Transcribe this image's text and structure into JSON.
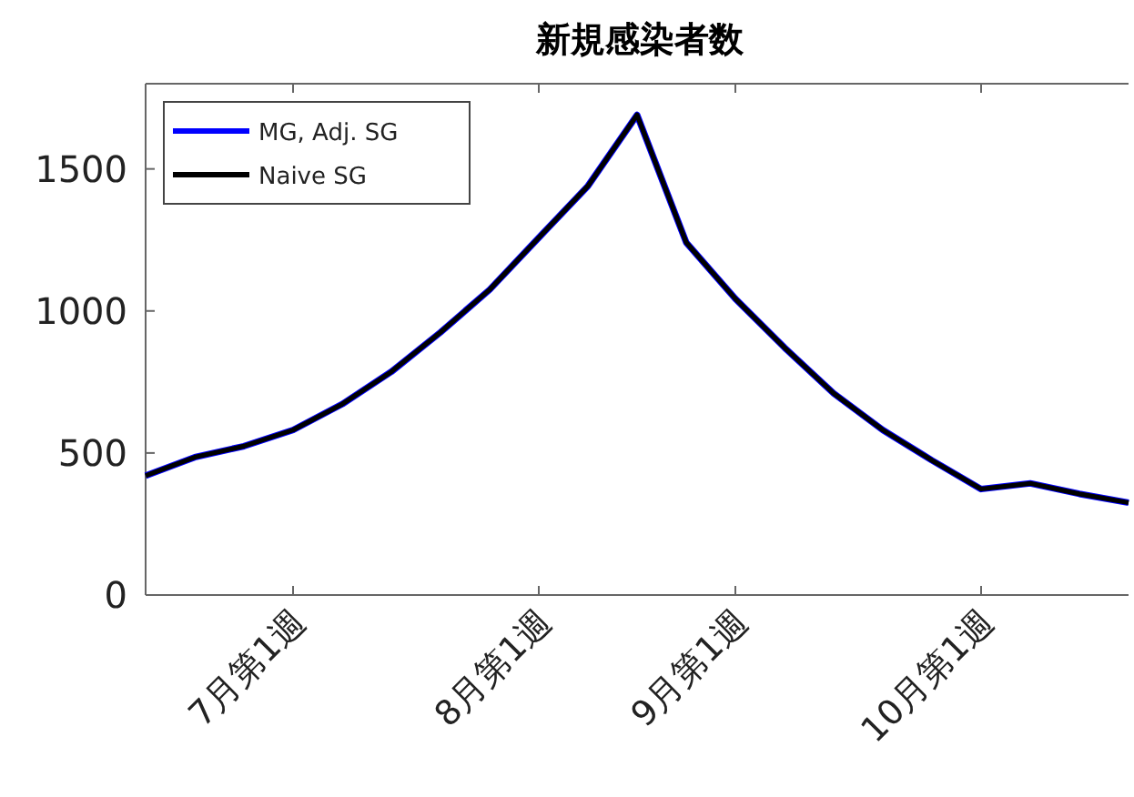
{
  "chart_data": {
    "type": "line",
    "title": "新規感染者数",
    "categories": [
      null,
      null,
      null,
      "7月第1週",
      null,
      null,
      null,
      null,
      "8月第1週",
      null,
      null,
      null,
      "9月第1週",
      null,
      null,
      null,
      null,
      "10月第1週",
      null,
      null,
      null
    ],
    "series": [
      {
        "name": "MG, Adj. SG",
        "color": "#0000ff",
        "values": [
          420,
          485,
          524,
          581,
          672,
          786,
          925,
          1075,
          1258,
          1440,
          1690,
          1241,
          1043,
          871,
          710,
          581,
          474,
          373,
          393,
          356,
          325
        ]
      },
      {
        "name": "Naive SG",
        "color": "#000000",
        "values": [
          420,
          485,
          524,
          581,
          672,
          786,
          925,
          1075,
          1258,
          1440,
          1690,
          1241,
          1043,
          871,
          710,
          581,
          474,
          373,
          393,
          356,
          325
        ]
      }
    ],
    "ylim": [
      0,
      1800
    ],
    "yticks": [
      0,
      500,
      1000,
      1500
    ],
    "grid": false,
    "legend": "top left",
    "marker": "none",
    "line_style": "solid"
  }
}
